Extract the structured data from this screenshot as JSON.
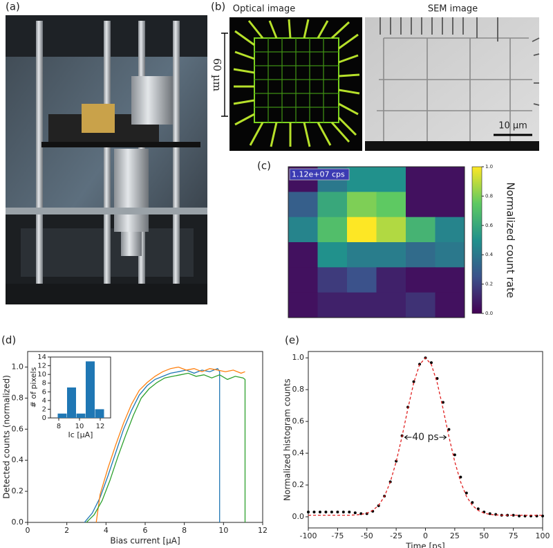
{
  "panel_labels": [
    "(a)",
    "(b)",
    "(c)",
    "(d)",
    "(e)"
  ],
  "images": {
    "optical": {
      "title": "Optical image",
      "scale": "60 µm"
    },
    "sem": {
      "title": "SEM image",
      "scale": "10 µm"
    }
  },
  "chart_data": [
    {
      "type": "heatmap",
      "colormap": "viridis",
      "annotation": "1.12e+07 cps",
      "z": [
        [
          0.05,
          0.4,
          0.5,
          0.5,
          0.05,
          0.05
        ],
        [
          0.3,
          0.6,
          0.8,
          0.75,
          0.05,
          0.05
        ],
        [
          0.45,
          0.7,
          1.0,
          0.88,
          0.65,
          0.45
        ],
        [
          0.05,
          0.5,
          0.42,
          0.42,
          0.35,
          0.4
        ],
        [
          0.05,
          0.18,
          0.25,
          0.1,
          0.05,
          0.05
        ],
        [
          0.05,
          0.1,
          0.1,
          0.1,
          0.15,
          0.05
        ]
      ],
      "clim": [
        0,
        1
      ],
      "colorbar_label": "Normalized count rate",
      "colorbar_ticks": [
        {
          "value": 0,
          "label": "0.0"
        },
        {
          "value": 0.2,
          "label": "0.2"
        },
        {
          "value": 0.4,
          "label": "0.4"
        },
        {
          "value": 0.6,
          "label": "0.6"
        },
        {
          "value": 0.8,
          "label": "0.8"
        },
        {
          "value": 1,
          "label": "1.0"
        }
      ]
    },
    {
      "type": "line",
      "x_label": "Bias current [µA]",
      "y_label": "Detected counts (normalized)",
      "xlim": [
        0,
        12
      ],
      "xticks": [
        0,
        2,
        4,
        6,
        8,
        10,
        12
      ],
      "ylim": [
        0,
        1.1
      ],
      "yticks": [
        {
          "value": 0,
          "label": "0.0"
        },
        {
          "value": 0.2,
          "label": "0.2"
        },
        {
          "value": 0.4,
          "label": "0.4"
        },
        {
          "value": 0.6,
          "label": "0.6"
        },
        {
          "value": 0.8,
          "label": "0.8"
        },
        {
          "value": 1,
          "label": "1.0"
        }
      ],
      "series": [
        {
          "color": "#1f77b4",
          "style": "line",
          "x": [
            2.9,
            3.3,
            3.7,
            4.1,
            4.5,
            4.9,
            5.3,
            5.7,
            6.1,
            6.5,
            6.9,
            7.3,
            7.7,
            8.1,
            8.5,
            8.9,
            9.3,
            9.7,
            9.8,
            9.8
          ],
          "values": [
            0,
            0.06,
            0.16,
            0.3,
            0.45,
            0.6,
            0.72,
            0.82,
            0.88,
            0.92,
            0.94,
            0.96,
            0.97,
            0.98,
            0.96,
            0.98,
            0.97,
            0.99,
            0.97,
            0
          ]
        },
        {
          "color": "#ff7f0e",
          "style": "line",
          "x": [
            3.5,
            3.7,
            4.1,
            4.5,
            4.9,
            5.3,
            5.7,
            6.1,
            6.5,
            6.9,
            7.3,
            7.7,
            8.1,
            8.5,
            8.9,
            9.3,
            9.7,
            10.1,
            10.5,
            10.9,
            11.1
          ],
          "values": [
            0,
            0.18,
            0.35,
            0.5,
            0.64,
            0.76,
            0.85,
            0.9,
            0.94,
            0.97,
            0.99,
            1.0,
            0.98,
            0.99,
            0.97,
            0.99,
            0.98,
            0.97,
            0.98,
            0.96,
            0.97
          ]
        },
        {
          "color": "#2ca02c",
          "style": "line",
          "x": [
            3.0,
            3.4,
            3.8,
            4.2,
            4.6,
            5.0,
            5.4,
            5.8,
            6.2,
            6.6,
            7.0,
            7.4,
            7.8,
            8.2,
            8.6,
            9.0,
            9.4,
            9.8,
            10.2,
            10.6,
            11.0,
            11.1,
            11.1
          ],
          "values": [
            0,
            0.05,
            0.14,
            0.27,
            0.42,
            0.56,
            0.69,
            0.8,
            0.86,
            0.9,
            0.93,
            0.94,
            0.95,
            0.96,
            0.94,
            0.95,
            0.93,
            0.95,
            0.92,
            0.94,
            0.93,
            0.92,
            0
          ]
        }
      ]
    },
    {
      "type": "histogram",
      "x_label": "Ic [µA]",
      "y_label": "# of pixels",
      "color": "#1f77b4",
      "bins": [
        7.9,
        8.8,
        9.7,
        10.6,
        11.5,
        12.4
      ],
      "counts": [
        1,
        7,
        1,
        13,
        2
      ],
      "xlim": [
        7.2,
        13
      ],
      "xticks": [
        8,
        10,
        12
      ],
      "ylim": [
        0,
        14
      ],
      "yticks": [
        0,
        2,
        4,
        6,
        8,
        10,
        12,
        14
      ]
    },
    {
      "type": "line",
      "x_label": "Time [ps]",
      "y_label": "Normalized histogram counts",
      "annotation": "40 ps",
      "xlim": [
        -100,
        100
      ],
      "xticks": [
        -100,
        -75,
        -50,
        -25,
        0,
        25,
        50,
        75,
        100
      ],
      "ylim": [
        -0.07,
        1.04
      ],
      "yticks": [
        {
          "value": 0,
          "label": "0.0"
        },
        {
          "value": 0.2,
          "label": "0.2"
        },
        {
          "value": 0.4,
          "label": "0.4"
        },
        {
          "value": 0.6,
          "label": "0.6"
        },
        {
          "value": 0.8,
          "label": "0.8"
        },
        {
          "value": 1,
          "label": "1.0"
        }
      ],
      "x": [
        -100,
        -95,
        -90,
        -85,
        -80,
        -75,
        -70,
        -65,
        -60,
        -55,
        -50,
        -45,
        -40,
        -35,
        -30,
        -25,
        -20,
        -15,
        -10,
        -5,
        0,
        5,
        10,
        15,
        20,
        25,
        30,
        35,
        40,
        45,
        50,
        55,
        60,
        65,
        70,
        75,
        80,
        85,
        90,
        95,
        100
      ],
      "series": [
        {
          "color": "#000000",
          "style": "dots",
          "values": [
            0.03,
            0.03,
            0.03,
            0.03,
            0.03,
            0.03,
            0.03,
            0.03,
            0.025,
            0.02,
            0.02,
            0.035,
            0.07,
            0.13,
            0.22,
            0.35,
            0.51,
            0.69,
            0.85,
            0.96,
            1.0,
            0.97,
            0.87,
            0.72,
            0.55,
            0.39,
            0.25,
            0.15,
            0.09,
            0.05,
            0.03,
            0.02,
            0.015,
            0.01,
            0.01,
            0.01,
            0.005,
            0.005,
            0.005,
            0.005,
            0.005
          ]
        },
        {
          "color": "#e02020",
          "style": "dashed",
          "values": [
            0.01,
            0.01,
            0.01,
            0.01,
            0.01,
            0.01,
            0.01,
            0.01,
            0.012,
            0.015,
            0.023,
            0.04,
            0.072,
            0.129,
            0.219,
            0.346,
            0.505,
            0.681,
            0.843,
            0.958,
            1.0,
            0.958,
            0.843,
            0.681,
            0.505,
            0.346,
            0.219,
            0.129,
            0.072,
            0.04,
            0.023,
            0.015,
            0.012,
            0.01,
            0.01,
            0.01,
            0.01,
            0.01,
            0.01,
            0.01,
            0.01
          ]
        }
      ]
    }
  ]
}
